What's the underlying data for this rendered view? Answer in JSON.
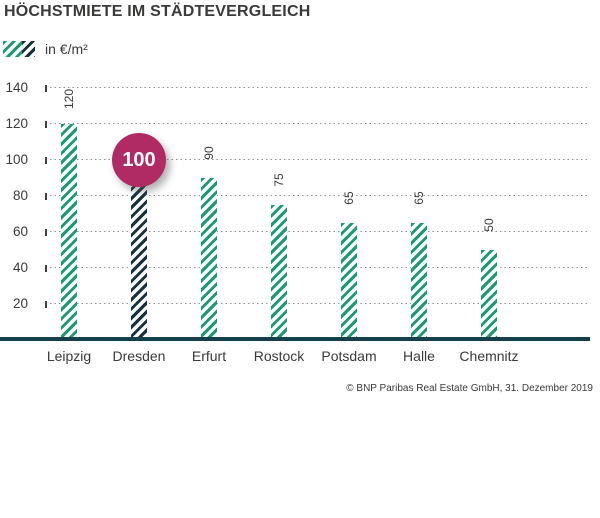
{
  "title": "HÖCHSTMIETE IM STÄDTEVERGLEICH",
  "legend": {
    "label": "in €/m²"
  },
  "footer": "© BNP Paribas Real Estate GmbH, 31. Dezember 2019",
  "colors": {
    "bar_green": "#1a9c6e",
    "bar_dark": "#17323d",
    "axis_line": "#143f4b",
    "highlight_bubble": "#b02a64",
    "text": "#3a3a39",
    "grid_dots": "#8f8f8f"
  },
  "chart_data": {
    "type": "bar",
    "title": "HÖCHSTMIETE IM STÄDTEVERGLEICH",
    "unit_label": "in €/m²",
    "categories": [
      "Leipzig",
      "Dresden",
      "Erfurt",
      "Rostock",
      "Potsdam",
      "Halle",
      "Chemnitz"
    ],
    "values": [
      120,
      100,
      90,
      75,
      65,
      65,
      50
    ],
    "value_labels": [
      "120",
      "100",
      "90",
      "75",
      "65",
      "65",
      "50"
    ],
    "highlight_index": 1,
    "highlight_label": "100",
    "yticks": [
      20,
      40,
      60,
      80,
      100,
      120,
      140
    ],
    "ylim": [
      0,
      150
    ],
    "grid": "dotted-horizontal",
    "legend_position": "top-left",
    "bar_style": "diagonal-hatch",
    "source": "© BNP Paribas Real Estate GmbH, 31. Dezember 2019"
  }
}
